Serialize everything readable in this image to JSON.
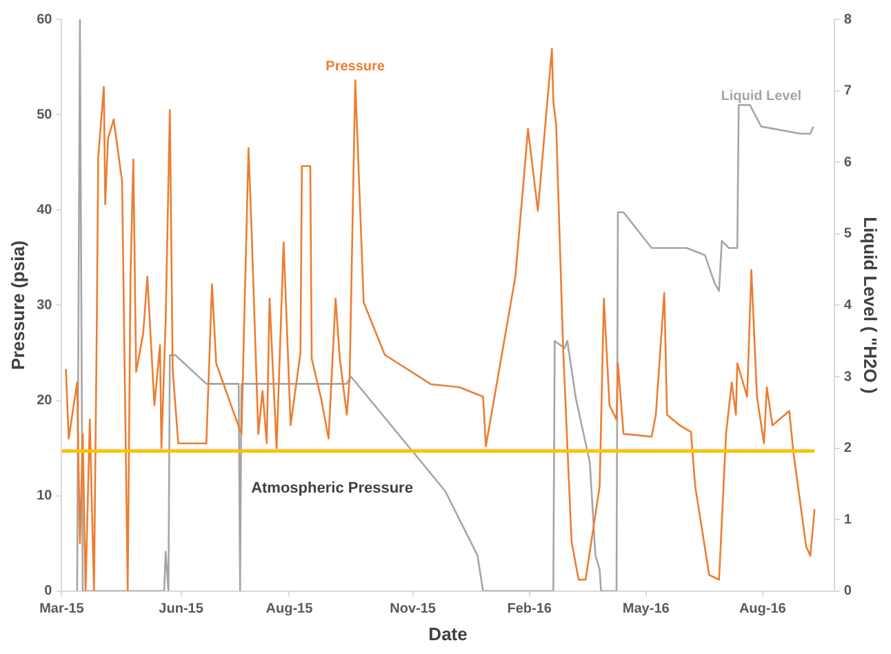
{
  "chart_data": {
    "type": "line",
    "xlabel": "Date",
    "ylabel": "Pressure (psia)",
    "y2label": "Liquid Level ( \"H2O )",
    "xlim": [
      "2015-03-22",
      "2016-09-22"
    ],
    "xticks": [
      {
        "value": "2015-03-22",
        "label": "Mar-15"
      },
      {
        "value": "2015-06-15",
        "label": "Jun-15"
      },
      {
        "value": "2015-08-31",
        "label": "Aug-15"
      },
      {
        "value": "2015-11-27",
        "label": "Nov-15"
      },
      {
        "value": "2016-02-18",
        "label": "Feb-16"
      },
      {
        "value": "2016-05-11",
        "label": "May-16"
      },
      {
        "value": "2016-08-02",
        "label": "Aug-16"
      }
    ],
    "ylim": [
      0,
      60
    ],
    "yticks": [
      0,
      10,
      20,
      30,
      40,
      50,
      60
    ],
    "y2lim": [
      0,
      8
    ],
    "y2ticks": [
      0,
      1,
      2,
      3,
      4,
      5,
      6,
      7,
      8
    ],
    "legend": false,
    "marker": "none",
    "line_style": "solid",
    "ref_lines": [
      {
        "axis": "y",
        "value": 14.7,
        "label": "Atmospheric Pressure",
        "color": "#ffc000"
      }
    ],
    "series": [
      {
        "name": "Pressure",
        "color": "#ed7d31",
        "x": [
          "2015-03-25",
          "2015-03-27",
          "2015-04-02",
          "2015-04-04",
          "2015-04-06",
          "2015-04-08",
          "2015-04-11",
          "2015-04-14",
          "2015-04-16",
          "2015-04-17",
          "2015-04-21",
          "2015-04-22",
          "2015-04-24",
          "2015-04-28",
          "2015-05-04",
          "2015-05-08",
          "2015-05-10",
          "2015-05-12",
          "2015-05-14",
          "2015-05-19",
          "2015-05-22",
          "2015-05-27",
          "2015-05-31",
          "2015-06-01",
          "2015-06-04",
          "2015-06-07",
          "2015-06-09",
          "2015-06-13",
          "2015-07-03",
          "2015-07-07",
          "2015-07-10",
          "2015-07-23",
          "2015-07-28",
          "2015-08-02",
          "2015-08-04",
          "2015-08-09",
          "2015-08-12",
          "2015-08-15",
          "2015-08-17",
          "2015-08-22",
          "2015-08-27",
          "2015-09-01",
          "2015-09-08",
          "2015-09-09",
          "2015-09-15",
          "2015-09-16",
          "2015-09-23",
          "2015-09-28",
          "2015-10-03",
          "2015-10-06",
          "2015-10-11",
          "2015-10-13",
          "2015-10-17",
          "2015-10-23",
          "2015-11-07",
          "2015-12-10",
          "2015-12-30",
          "2016-01-16",
          "2016-01-18",
          "2016-02-08",
          "2016-02-17",
          "2016-02-24",
          "2016-03-05",
          "2016-03-06",
          "2016-03-08",
          "2016-03-13",
          "2016-03-19",
          "2016-03-24",
          "2016-03-29",
          "2016-04-08",
          "2016-04-11",
          "2016-04-15",
          "2016-04-20",
          "2016-04-21",
          "2016-04-25",
          "2016-05-15",
          "2016-05-18",
          "2016-05-24",
          "2016-05-26",
          "2016-06-04",
          "2016-06-12",
          "2016-06-15",
          "2016-06-25",
          "2016-07-02",
          "2016-07-07",
          "2016-07-11",
          "2016-07-14",
          "2016-07-15",
          "2016-07-22",
          "2016-07-25",
          "2016-07-29",
          "2016-08-03",
          "2016-08-05",
          "2016-08-09",
          "2016-08-21",
          "2016-08-24",
          "2016-09-02",
          "2016-09-05",
          "2016-09-08"
        ],
        "values": [
          23.3,
          16,
          21.9,
          5,
          16.5,
          0,
          18,
          0,
          28,
          45.5,
          52.9,
          40.6,
          47.5,
          49.5,
          43,
          0,
          33,
          45.3,
          23,
          27,
          33,
          19.5,
          25.8,
          15,
          28.3,
          50.5,
          23.3,
          15.5,
          15.5,
          32.2,
          23.9,
          18.5,
          16.5,
          46.5,
          38.7,
          16.5,
          21,
          15.5,
          30.7,
          15,
          36.6,
          17.4,
          25,
          44.6,
          44.6,
          24.4,
          20,
          16,
          30.7,
          24.4,
          18.5,
          22.4,
          53.6,
          30.3,
          24.8,
          21.7,
          21.4,
          20.4,
          15.2,
          33,
          48.5,
          39.9,
          56.9,
          51.4,
          49,
          25.4,
          5.2,
          1.2,
          1.2,
          11,
          30.7,
          19.5,
          18,
          23.9,
          16.5,
          16.2,
          18.5,
          31.3,
          18.5,
          17.4,
          16.7,
          11,
          1.7,
          1.2,
          16.5,
          21.9,
          18.5,
          23.9,
          20.4,
          33.7,
          20.4,
          15.5,
          21.4,
          17.4,
          18.9,
          14.5,
          4.7,
          3.7,
          8.6
        ]
      },
      {
        "name": "Liquid Level",
        "color": "#a5a5a5",
        "axis": "y2",
        "x": [
          "2015-04-02",
          "2015-04-04",
          "2015-04-06",
          "2015-06-03",
          "2015-06-04",
          "2015-06-06",
          "2015-06-07",
          "2015-06-11",
          "2015-07-03",
          "2015-07-26",
          "2015-07-27",
          "2015-07-28",
          "2015-10-11",
          "2015-10-14",
          "2015-12-20",
          "2016-01-12",
          "2016-01-16",
          "2016-03-06",
          "2016-03-07",
          "2016-03-14",
          "2016-03-16",
          "2016-03-22",
          "2016-04-01",
          "2016-04-05",
          "2016-04-08",
          "2016-04-09",
          "2016-04-20",
          "2016-04-21",
          "2016-04-25",
          "2016-05-15",
          "2016-06-09",
          "2016-06-22",
          "2016-06-29",
          "2016-07-02",
          "2016-07-04",
          "2016-07-09",
          "2016-07-15",
          "2016-07-16",
          "2016-07-24",
          "2016-08-01",
          "2016-08-29",
          "2016-09-05",
          "2016-09-07"
        ],
        "values": [
          0,
          8,
          0,
          0,
          0.55,
          0,
          3.3,
          3.3,
          2.9,
          2.9,
          0,
          2.9,
          2.9,
          3.0,
          1.4,
          0.5,
          0,
          0,
          3.5,
          3.4,
          3.5,
          2.7,
          1.8,
          0.5,
          0.3,
          0,
          0,
          5.3,
          5.3,
          4.8,
          4.8,
          4.7,
          4.3,
          4.2,
          4.9,
          4.8,
          4.8,
          6.8,
          6.8,
          6.5,
          6.4,
          6.4,
          6.5
        ]
      }
    ]
  }
}
